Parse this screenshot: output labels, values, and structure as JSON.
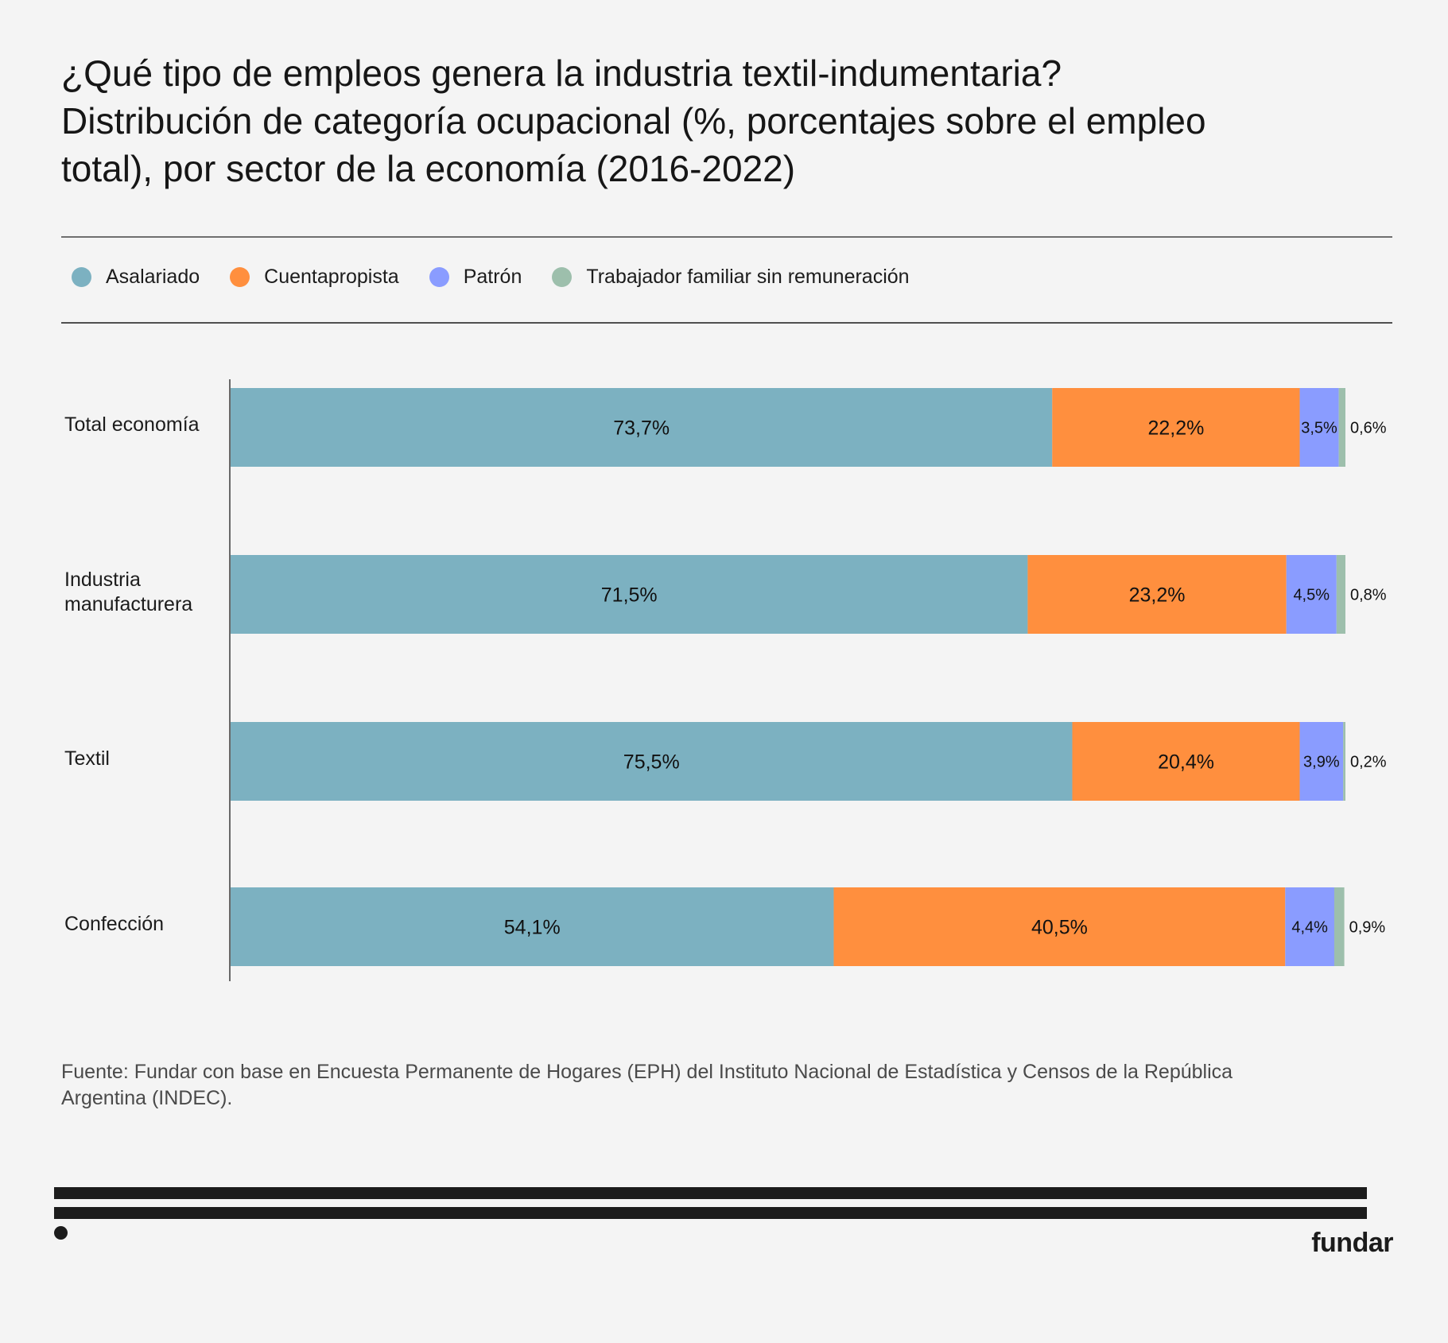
{
  "title": {
    "line1": "¿Qué tipo de empleos genera la industria textil-indumentaria?",
    "line2": "Distribución de categoría ocupacional (%, porcentajes sobre el empleo",
    "line3": "total), por sector de la economía (2016-2022)"
  },
  "legend": [
    {
      "label": "Asalariado",
      "color": "#7cb1c1"
    },
    {
      "label": "Cuentapropista",
      "color": "#ff8f3e"
    },
    {
      "label": "Patrón",
      "color": "#8a9cff"
    },
    {
      "label": "Trabajador familiar sin remuneración",
      "color": "#9dbfac"
    }
  ],
  "chart_data": {
    "type": "bar",
    "orientation": "horizontal",
    "stacked": true,
    "title": "¿Qué tipo de empleos genera la industria textil-indumentaria? Distribución de categoría ocupacional (%, porcentajes sobre el empleo total), por sector de la economía (2016-2022)",
    "xlabel": "",
    "ylabel": "",
    "xlim": [
      0,
      100
    ],
    "grid": false,
    "legend_position": "top-left",
    "categories": [
      "Total economía",
      "Industria manufacturera",
      "Textil",
      "Confección"
    ],
    "category_labels": [
      [
        "Total economía"
      ],
      [
        "Industria",
        "manufacturera"
      ],
      [
        "Textil"
      ],
      [
        "Confección"
      ]
    ],
    "series": [
      {
        "name": "Asalariado",
        "color": "#7cb1c1",
        "values": [
          73.7,
          71.5,
          75.5,
          54.1
        ],
        "labels": [
          "73,7%",
          "71,5%",
          "75,5%",
          "54,1%"
        ]
      },
      {
        "name": "Cuentapropista",
        "color": "#ff8f3e",
        "values": [
          22.2,
          23.2,
          20.4,
          40.5
        ],
        "labels": [
          "22,2%",
          "23,2%",
          "20,4%",
          "40,5%"
        ]
      },
      {
        "name": "Patrón",
        "color": "#8a9cff",
        "values": [
          3.5,
          4.5,
          3.9,
          4.4
        ],
        "labels": [
          "3,5%",
          "4,5%",
          "3,9%",
          "4,4%"
        ]
      },
      {
        "name": "Trabajador familiar sin remuneración",
        "color": "#9dbfac",
        "values": [
          0.6,
          0.8,
          0.2,
          0.9
        ],
        "labels": [
          "0,6%",
          "0,8%",
          "0,2%",
          "0,9%"
        ]
      }
    ]
  },
  "source": {
    "line1": "Fuente: Fundar con base en Encuesta Permanente de Hogares (EPH) del Instituto Nacional de Estadística y Censos de la República",
    "line2": "Argentina (INDEC)."
  },
  "brand": "fundar"
}
